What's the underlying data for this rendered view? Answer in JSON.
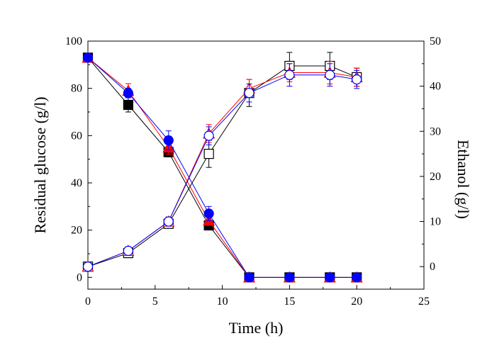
{
  "chart_data": {
    "type": "line",
    "xlabel": "Time (h)",
    "ylabel_left": "Residual glucose (g/l)",
    "ylabel_right": "Ethanol (g/l)",
    "xlim": [
      0,
      25
    ],
    "ylim_left": [
      -5,
      100
    ],
    "ylim_right": [
      -5,
      50
    ],
    "xticks": [
      0,
      5,
      10,
      15,
      20,
      25
    ],
    "yticks_left": [
      0,
      20,
      40,
      60,
      80,
      100
    ],
    "yticks_right": [
      0,
      10,
      20,
      30,
      40,
      50
    ],
    "x": [
      0,
      3,
      6,
      9,
      12,
      15,
      18,
      20
    ],
    "series": [
      {
        "axis": "left",
        "marker": "square",
        "filled": true,
        "color": "#000000",
        "values": [
          93,
          73,
          53,
          22,
          0,
          0,
          0,
          0
        ],
        "errors": [
          0,
          3,
          2,
          1,
          0,
          0,
          0,
          0
        ]
      },
      {
        "axis": "left",
        "marker": "triangle",
        "filled": true,
        "color": "#ff0000",
        "values": [
          93,
          79,
          55,
          24,
          0,
          0,
          0,
          0
        ],
        "errors": [
          0,
          3,
          3,
          2,
          0,
          0,
          0,
          0
        ]
      },
      {
        "axis": "left",
        "marker": "circle",
        "filled": true,
        "color": "#0000ff",
        "values": [
          93,
          78,
          58,
          27,
          0,
          0,
          0,
          0
        ],
        "errors": [
          0,
          2,
          4,
          3,
          0,
          0,
          0,
          0
        ]
      },
      {
        "axis": "right",
        "marker": "square",
        "filled": false,
        "color": "#000000",
        "values": [
          0,
          3,
          9.5,
          25,
          38.5,
          44.5,
          44.5,
          42
        ],
        "errors": [
          0,
          0.5,
          1,
          3,
          3,
          3,
          3,
          2
        ]
      },
      {
        "axis": "right",
        "marker": "triangle",
        "filled": false,
        "color": "#ff0000",
        "values": [
          0,
          3.5,
          10,
          29.5,
          39.5,
          43,
          43,
          42
        ],
        "errors": [
          0,
          0.5,
          1,
          2,
          2,
          2,
          2.5,
          2
        ]
      },
      {
        "axis": "right",
        "marker": "circle",
        "filled": false,
        "color": "#0000ff",
        "values": [
          0,
          3.5,
          10,
          29,
          38.5,
          42.5,
          42.5,
          41.5
        ],
        "errors": [
          0,
          0.5,
          1,
          2,
          2,
          2.5,
          2.5,
          2
        ]
      }
    ]
  }
}
